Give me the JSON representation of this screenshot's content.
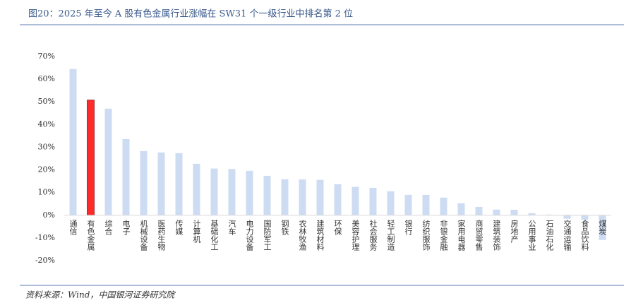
{
  "chart_data": {
    "type": "bar",
    "title": "图20：2025 年至今 A 股有色金属行业涨幅在 SW31 个一级行业中排名第 2 位",
    "source": "资料来源：Wind，中国银河证券研究院",
    "categories": [
      "通信",
      "有色金属",
      "综合",
      "电子",
      "机械设备",
      "医药生物",
      "传媒",
      "计算机",
      "基础化工",
      "汽车",
      "电力设备",
      "国防军工",
      "钢铁",
      "农林牧渔",
      "建筑材料",
      "环保",
      "美容护理",
      "社会服务",
      "轻工制造",
      "银行",
      "纺织服饰",
      "非银金融",
      "家用电器",
      "商贸零售",
      "建筑装饰",
      "房地产",
      "公用事业",
      "石油石化",
      "交通运输",
      "食品饮料",
      "煤炭"
    ],
    "values": [
      64.5,
      50.8,
      47.0,
      33.6,
      28.3,
      27.7,
      27.4,
      22.7,
      20.6,
      20.4,
      19.6,
      17.4,
      15.9,
      15.8,
      15.6,
      13.7,
      12.5,
      12.1,
      10.6,
      9.0,
      9.0,
      7.8,
      5.3,
      3.7,
      2.5,
      2.4,
      0.9,
      0.3,
      -1.5,
      -2.0,
      -10.9
    ],
    "colors": [
      "#cddcf2",
      "#ff2a2a",
      "#cddcf2",
      "#cddcf2",
      "#cddcf2",
      "#cddcf2",
      "#cddcf2",
      "#cddcf2",
      "#cddcf2",
      "#cddcf2",
      "#cddcf2",
      "#cddcf2",
      "#cddcf2",
      "#cddcf2",
      "#cddcf2",
      "#cddcf2",
      "#cddcf2",
      "#cddcf2",
      "#cddcf2",
      "#cddcf2",
      "#cddcf2",
      "#cddcf2",
      "#cddcf2",
      "#cddcf2",
      "#cddcf2",
      "#cddcf2",
      "#cddcf2",
      "#cddcf2",
      "#cddcf2",
      "#cddcf2",
      "#cddcf2"
    ],
    "ylim": [
      -20,
      70
    ],
    "yticks": [
      {
        "value": -20,
        "label": "-20%"
      },
      {
        "value": -10,
        "label": "-10%"
      },
      {
        "value": 0,
        "label": "0%"
      },
      {
        "value": 10,
        "label": "10%"
      },
      {
        "value": 20,
        "label": "20%"
      },
      {
        "value": 30,
        "label": "30%"
      },
      {
        "value": 40,
        "label": "40%"
      },
      {
        "value": 50,
        "label": "50%"
      },
      {
        "value": 60,
        "label": "60%"
      },
      {
        "value": 70,
        "label": "70%"
      }
    ],
    "grid": false
  }
}
